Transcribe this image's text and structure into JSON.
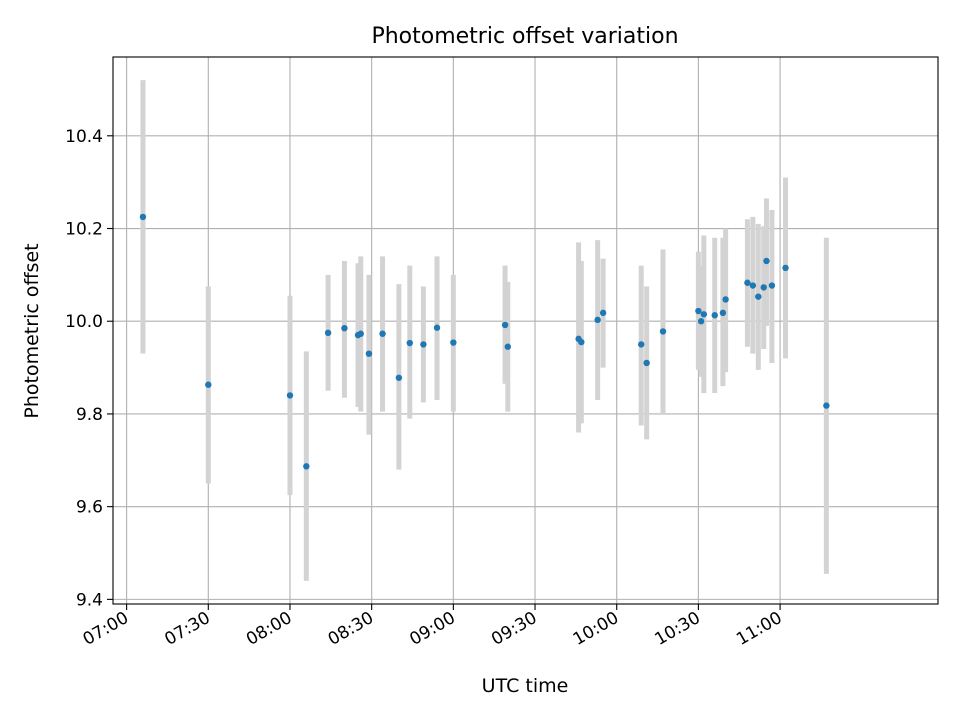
{
  "chart_data": {
    "type": "scatter",
    "title": "Photometric offset variation",
    "xlabel": "UTC time",
    "ylabel": "Photometric offset",
    "x_ticks": [
      "07:00",
      "07:30",
      "08:00",
      "08:30",
      "09:00",
      "09:30",
      "10:00",
      "10:30",
      "11:00"
    ],
    "y_ticks": [
      "9.4",
      "9.6",
      "9.8",
      "10.0",
      "10.2",
      "10.4"
    ],
    "xlim": [
      "06:55",
      "11:58"
    ],
    "ylim": [
      9.39,
      10.57
    ],
    "grid": true,
    "colors": {
      "point": "#1f77b4",
      "errorbar": "#d3d3d3",
      "grid": "#b0b0b0"
    },
    "series": [
      {
        "points": [
          {
            "x": "07:06",
            "y": 10.225,
            "yerr_low": 9.93,
            "yerr_high": 10.52
          },
          {
            "x": "07:30",
            "y": 9.863,
            "yerr_low": 9.65,
            "yerr_high": 10.075
          },
          {
            "x": "08:00",
            "y": 9.84,
            "yerr_low": 9.625,
            "yerr_high": 10.055
          },
          {
            "x": "08:06",
            "y": 9.687,
            "yerr_low": 9.44,
            "yerr_high": 9.935
          },
          {
            "x": "08:14",
            "y": 9.975,
            "yerr_low": 9.85,
            "yerr_high": 10.1
          },
          {
            "x": "08:20",
            "y": 9.985,
            "yerr_low": 9.835,
            "yerr_high": 10.13
          },
          {
            "x": "08:25",
            "y": 9.97,
            "yerr_low": 9.815,
            "yerr_high": 10.125
          },
          {
            "x": "08:26",
            "y": 9.973,
            "yerr_low": 9.805,
            "yerr_high": 10.14
          },
          {
            "x": "08:29",
            "y": 9.93,
            "yerr_low": 9.755,
            "yerr_high": 10.1
          },
          {
            "x": "08:34",
            "y": 9.973,
            "yerr_low": 9.805,
            "yerr_high": 10.14
          },
          {
            "x": "08:40",
            "y": 9.878,
            "yerr_low": 9.68,
            "yerr_high": 10.08
          },
          {
            "x": "08:44",
            "y": 9.953,
            "yerr_low": 9.79,
            "yerr_high": 10.12
          },
          {
            "x": "08:49",
            "y": 9.95,
            "yerr_low": 9.825,
            "yerr_high": 10.075
          },
          {
            "x": "08:54",
            "y": 9.986,
            "yerr_low": 9.83,
            "yerr_high": 10.14
          },
          {
            "x": "09:00",
            "y": 9.954,
            "yerr_low": 9.805,
            "yerr_high": 10.1
          },
          {
            "x": "09:19",
            "y": 9.992,
            "yerr_low": 9.865,
            "yerr_high": 10.12
          },
          {
            "x": "09:20",
            "y": 9.945,
            "yerr_low": 9.805,
            "yerr_high": 10.085
          },
          {
            "x": "09:46",
            "y": 9.962,
            "yerr_low": 9.76,
            "yerr_high": 10.17
          },
          {
            "x": "09:47",
            "y": 9.955,
            "yerr_low": 9.78,
            "yerr_high": 10.13
          },
          {
            "x": "09:53",
            "y": 10.003,
            "yerr_low": 9.83,
            "yerr_high": 10.175
          },
          {
            "x": "09:55",
            "y": 10.018,
            "yerr_low": 9.9,
            "yerr_high": 10.135
          },
          {
            "x": "10:09",
            "y": 9.95,
            "yerr_low": 9.775,
            "yerr_high": 10.12
          },
          {
            "x": "10:11",
            "y": 9.91,
            "yerr_low": 9.745,
            "yerr_high": 10.075
          },
          {
            "x": "10:17",
            "y": 9.978,
            "yerr_low": 9.8,
            "yerr_high": 10.155
          },
          {
            "x": "10:30",
            "y": 10.022,
            "yerr_low": 9.895,
            "yerr_high": 10.15
          },
          {
            "x": "10:31",
            "y": 10.0,
            "yerr_low": 9.88,
            "yerr_high": 10.12
          },
          {
            "x": "10:32",
            "y": 10.015,
            "yerr_low": 9.845,
            "yerr_high": 10.185
          },
          {
            "x": "10:36",
            "y": 10.013,
            "yerr_low": 9.845,
            "yerr_high": 10.18
          },
          {
            "x": "10:39",
            "y": 10.018,
            "yerr_low": 9.86,
            "yerr_high": 10.18
          },
          {
            "x": "10:40",
            "y": 10.047,
            "yerr_low": 9.89,
            "yerr_high": 10.2
          },
          {
            "x": "10:48",
            "y": 10.083,
            "yerr_low": 9.945,
            "yerr_high": 10.22
          },
          {
            "x": "10:50",
            "y": 10.077,
            "yerr_low": 9.93,
            "yerr_high": 10.225
          },
          {
            "x": "10:52",
            "y": 10.053,
            "yerr_low": 9.895,
            "yerr_high": 10.21
          },
          {
            "x": "10:54",
            "y": 10.073,
            "yerr_low": 9.94,
            "yerr_high": 10.205
          },
          {
            "x": "10:55",
            "y": 10.13,
            "yerr_low": 9.99,
            "yerr_high": 10.265
          },
          {
            "x": "10:57",
            "y": 10.077,
            "yerr_low": 9.91,
            "yerr_high": 10.24
          },
          {
            "x": "11:02",
            "y": 10.115,
            "yerr_low": 9.92,
            "yerr_high": 10.31
          },
          {
            "x": "11:17",
            "y": 9.818,
            "yerr_low": 9.455,
            "yerr_high": 10.18
          }
        ]
      }
    ]
  }
}
